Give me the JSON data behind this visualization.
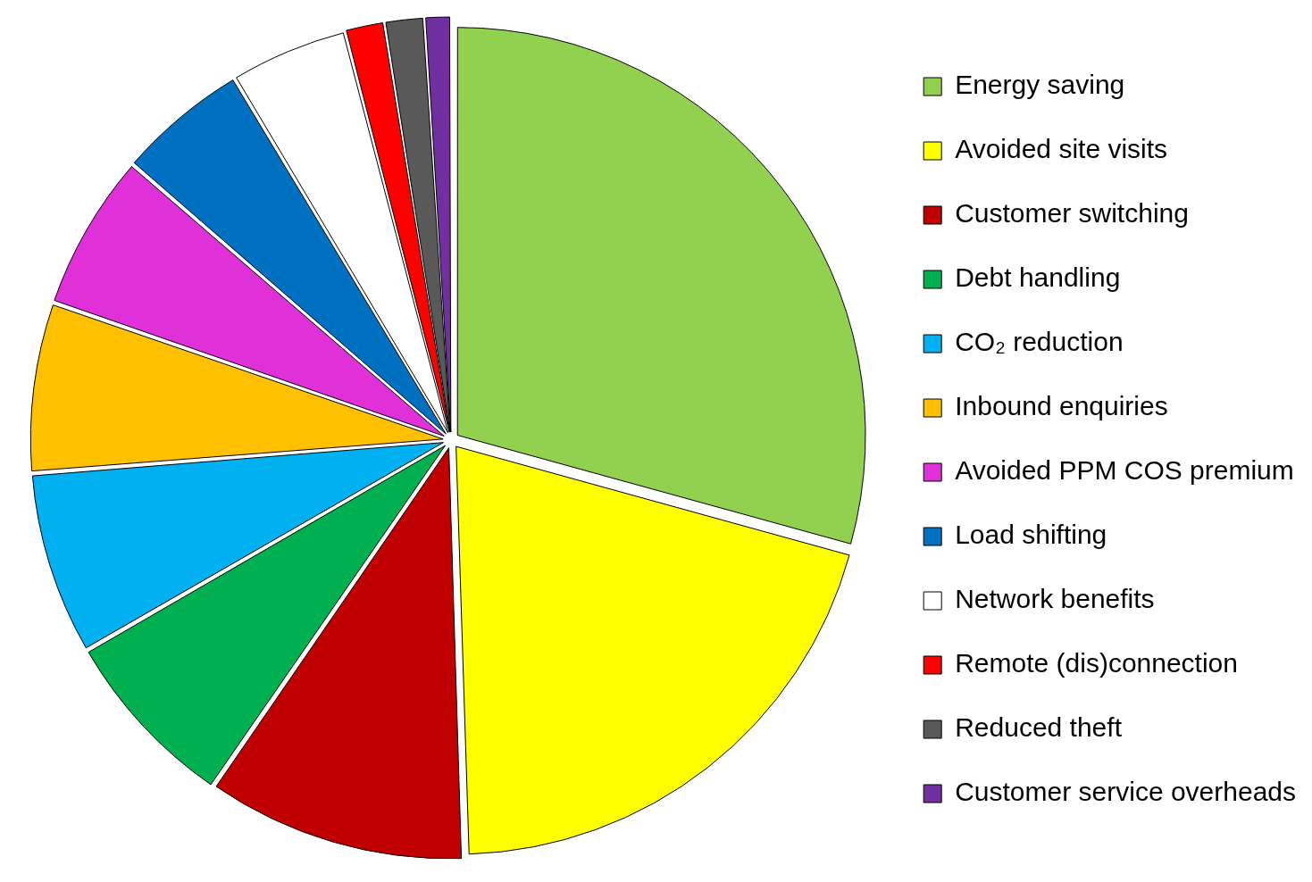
{
  "chart_data": {
    "type": "pie",
    "categories": [
      "Energy saving",
      "Avoided site visits",
      "Customer switching",
      "Debt handling",
      "CO₂ reduction",
      "Inbound enquiries",
      "Avoided PPM COS premium",
      "Load shifting",
      "Network benefits",
      "Remote (dis)connection",
      "Reduced theft",
      "Customer service overheads"
    ],
    "values": [
      29,
      20,
      10,
      7,
      7,
      6.5,
      6,
      5,
      4.5,
      1.5,
      1.5,
      1
    ],
    "colors": [
      "#92d050",
      "#ffff00",
      "#c00000",
      "#00b050",
      "#00b0f0",
      "#ffc000",
      "#e030d8",
      "#0070c0",
      "#ffffff",
      "#ff0000",
      "#595959",
      "#7030a0"
    ],
    "legend": "right"
  }
}
